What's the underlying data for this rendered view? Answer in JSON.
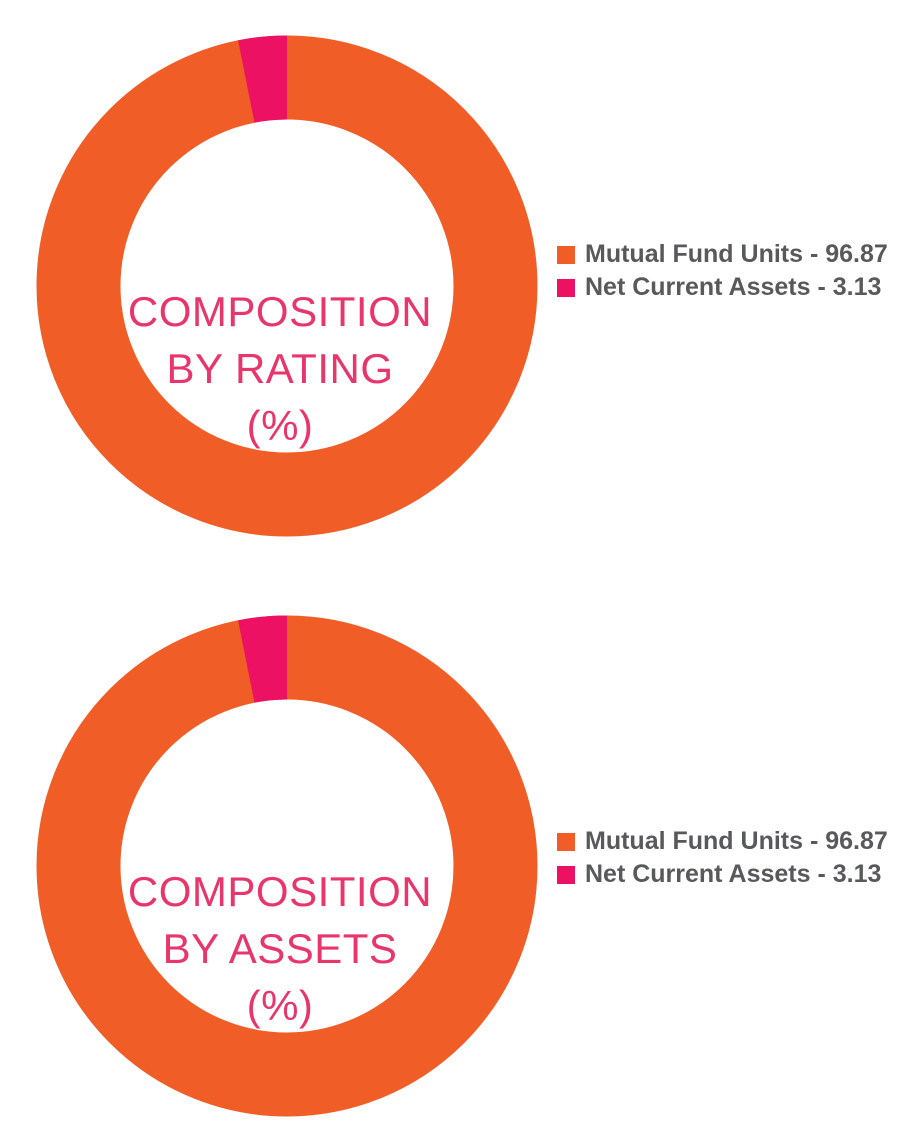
{
  "page": {
    "background": "#ffffff"
  },
  "colors": {
    "orange": "#F15D26",
    "pink": "#EC1162",
    "title_pink": "#E8356B",
    "legend_text": "#58595B"
  },
  "chart_data": [
    {
      "type": "pie",
      "subtype": "donut",
      "title": "COMPOSITION BY RATING (%)",
      "title_lines": [
        "COMPOSITION",
        "BY RATING",
        "(%)"
      ],
      "labels": [
        "Mutual Fund Units",
        "Net Current Assets"
      ],
      "values": [
        96.87,
        3.13
      ],
      "colors": [
        "#F15D26",
        "#EC1162"
      ],
      "legend_items": [
        {
          "label": "Mutual Fund Units - 96.87",
          "color": "#F15D26"
        },
        {
          "label": "Net Current Assets - 3.13",
          "color": "#EC1162"
        }
      ],
      "legend_position": "right",
      "start_angle_deg": -90,
      "direction": "clockwise",
      "donut_hole_ratio": 0.67
    },
    {
      "type": "pie",
      "subtype": "donut",
      "title": "COMPOSITION BY ASSETS (%)",
      "title_lines": [
        "COMPOSITION",
        "BY ASSETS",
        "(%)"
      ],
      "labels": [
        "Mutual Fund Units",
        "Net Current Assets"
      ],
      "values": [
        96.87,
        3.13
      ],
      "colors": [
        "#F15D26",
        "#EC1162"
      ],
      "legend_items": [
        {
          "label": "Mutual Fund Units - 96.87",
          "color": "#F15D26"
        },
        {
          "label": "Net Current Assets - 3.13",
          "color": "#EC1162"
        }
      ],
      "legend_position": "right",
      "start_angle_deg": -90,
      "direction": "clockwise",
      "donut_hole_ratio": 0.67
    }
  ]
}
